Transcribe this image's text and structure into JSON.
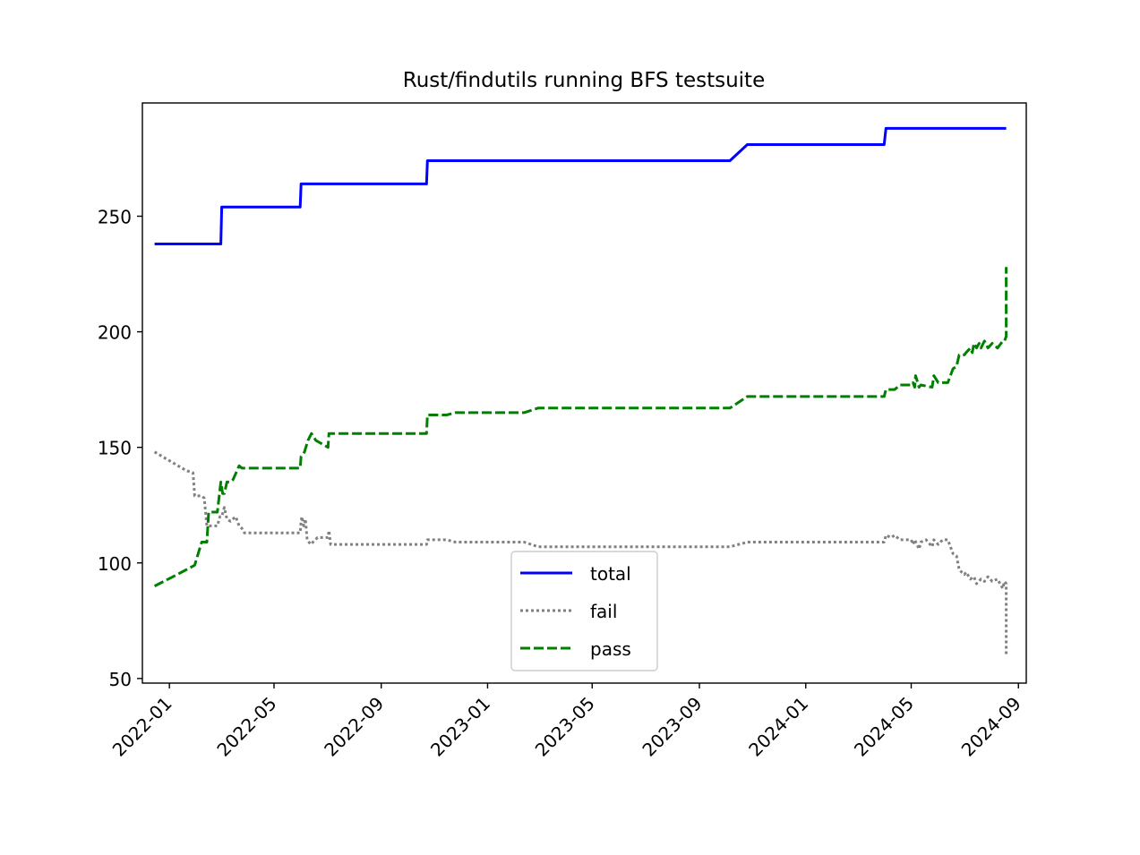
{
  "chart_data": {
    "type": "line",
    "title": "Rust/findutils running BFS testsuite",
    "xlabel": "",
    "ylabel": "",
    "x_ticks": [
      "2022-01-01",
      "2022-05-01",
      "2022-09-01",
      "2023-01-01",
      "2023-05-01",
      "2023-09-01",
      "2024-01-01",
      "2024-05-01",
      "2024-09-01"
    ],
    "x_tick_labels": [
      "2022-01",
      "2022-05",
      "2022-09",
      "2023-01",
      "2023-05",
      "2023-09",
      "2024-01",
      "2024-05",
      "2024-09"
    ],
    "y_ticks": [
      50,
      100,
      150,
      200,
      250
    ],
    "y_tick_labels": [
      "50",
      "100",
      "150",
      "200",
      "250"
    ],
    "xlim": [
      "2021-12-01",
      "2024-09-10"
    ],
    "ylim": [
      48,
      299
    ],
    "grid": false,
    "legend_position": "lower-center",
    "series": [
      {
        "name": "total",
        "color": "#0000ff",
        "style": "solid",
        "points": [
          [
            "2021-12-15",
            238
          ],
          [
            "2022-03-01",
            238
          ],
          [
            "2022-03-02",
            254
          ],
          [
            "2022-05-31",
            254
          ],
          [
            "2022-06-01",
            264
          ],
          [
            "2022-10-23",
            264
          ],
          [
            "2022-10-24",
            274
          ],
          [
            "2023-10-06",
            274
          ],
          [
            "2023-10-26",
            281
          ],
          [
            "2024-03-31",
            281
          ],
          [
            "2024-04-02",
            288
          ],
          [
            "2024-08-18",
            288
          ]
        ]
      },
      {
        "name": "fail",
        "color": "#808080",
        "style": "dotted",
        "points": [
          [
            "2021-12-15",
            148
          ],
          [
            "2022-01-20",
            140
          ],
          [
            "2022-01-28",
            139
          ],
          [
            "2022-01-30",
            129
          ],
          [
            "2022-02-07",
            129
          ],
          [
            "2022-02-10",
            128
          ],
          [
            "2022-02-13",
            116
          ],
          [
            "2022-02-25",
            116
          ],
          [
            "2022-02-28",
            120
          ],
          [
            "2022-03-02",
            120
          ],
          [
            "2022-03-05",
            124
          ],
          [
            "2022-03-08",
            119
          ],
          [
            "2022-03-12",
            118
          ],
          [
            "2022-03-18",
            120
          ],
          [
            "2022-03-22",
            116
          ],
          [
            "2022-03-25",
            115
          ],
          [
            "2022-03-28",
            113
          ],
          [
            "2022-05-31",
            113
          ],
          [
            "2022-06-01",
            118
          ],
          [
            "2022-06-02",
            120
          ],
          [
            "2022-06-04",
            116
          ],
          [
            "2022-06-06",
            119
          ],
          [
            "2022-06-08",
            110
          ],
          [
            "2022-06-12",
            108
          ],
          [
            "2022-06-20",
            111
          ],
          [
            "2022-07-02",
            111
          ],
          [
            "2022-07-03",
            114
          ],
          [
            "2022-07-05",
            108
          ],
          [
            "2022-10-23",
            108
          ],
          [
            "2022-10-24",
            110
          ],
          [
            "2022-11-15",
            110
          ],
          [
            "2022-11-25",
            109
          ],
          [
            "2023-02-12",
            109
          ],
          [
            "2023-02-28",
            107
          ],
          [
            "2023-10-06",
            107
          ],
          [
            "2023-10-26",
            109
          ],
          [
            "2024-03-31",
            109
          ],
          [
            "2024-04-02",
            112
          ],
          [
            "2024-04-08",
            111
          ],
          [
            "2024-04-12",
            112
          ],
          [
            "2024-04-18",
            110
          ],
          [
            "2024-05-01",
            110
          ],
          [
            "2024-05-03",
            108
          ],
          [
            "2024-05-05",
            110
          ],
          [
            "2024-05-10",
            106
          ],
          [
            "2024-05-12",
            109
          ],
          [
            "2024-05-18",
            110
          ],
          [
            "2024-05-25",
            107
          ],
          [
            "2024-05-27",
            110
          ],
          [
            "2024-06-01",
            108
          ],
          [
            "2024-06-06",
            110
          ],
          [
            "2024-06-12",
            110
          ],
          [
            "2024-06-18",
            104
          ],
          [
            "2024-06-22",
            103
          ],
          [
            "2024-06-25",
            97
          ],
          [
            "2024-07-01",
            95
          ],
          [
            "2024-07-03",
            96
          ],
          [
            "2024-07-08",
            93
          ],
          [
            "2024-07-12",
            94
          ],
          [
            "2024-07-15",
            91
          ],
          [
            "2024-07-20",
            93
          ],
          [
            "2024-07-24",
            92
          ],
          [
            "2024-07-28",
            94
          ],
          [
            "2024-08-02",
            92
          ],
          [
            "2024-08-08",
            93
          ],
          [
            "2024-08-14",
            89
          ],
          [
            "2024-08-16",
            92
          ],
          [
            "2024-08-18",
            91
          ],
          [
            "2024-08-18",
            60
          ]
        ]
      },
      {
        "name": "pass",
        "color": "#008000",
        "style": "dashed",
        "points": [
          [
            "2021-12-15",
            90
          ],
          [
            "2022-01-05",
            94
          ],
          [
            "2022-01-20",
            97
          ],
          [
            "2022-01-30",
            99
          ],
          [
            "2022-02-07",
            109
          ],
          [
            "2022-02-13",
            109
          ],
          [
            "2022-02-15",
            122
          ],
          [
            "2022-02-25",
            122
          ],
          [
            "2022-03-01",
            135
          ],
          [
            "2022-03-03",
            130
          ],
          [
            "2022-03-05",
            130
          ],
          [
            "2022-03-08",
            135
          ],
          [
            "2022-03-12",
            135
          ],
          [
            "2022-03-15",
            136
          ],
          [
            "2022-03-22",
            142
          ],
          [
            "2022-03-25",
            141
          ],
          [
            "2022-05-31",
            141
          ],
          [
            "2022-06-01",
            146
          ],
          [
            "2022-06-05",
            148
          ],
          [
            "2022-06-09",
            153
          ],
          [
            "2022-06-13",
            156
          ],
          [
            "2022-06-18",
            153
          ],
          [
            "2022-07-02",
            150
          ],
          [
            "2022-07-03",
            156
          ],
          [
            "2022-10-23",
            156
          ],
          [
            "2022-10-24",
            164
          ],
          [
            "2022-11-15",
            164
          ],
          [
            "2022-11-25",
            165
          ],
          [
            "2023-02-12",
            165
          ],
          [
            "2023-02-28",
            167
          ],
          [
            "2023-10-06",
            167
          ],
          [
            "2023-10-26",
            172
          ],
          [
            "2024-03-31",
            172
          ],
          [
            "2024-04-02",
            175
          ],
          [
            "2024-04-12",
            175
          ],
          [
            "2024-04-18",
            177
          ],
          [
            "2024-05-01",
            177
          ],
          [
            "2024-05-03",
            178
          ],
          [
            "2024-05-05",
            176
          ],
          [
            "2024-05-06",
            181
          ],
          [
            "2024-05-10",
            176
          ],
          [
            "2024-05-12",
            177
          ],
          [
            "2024-05-25",
            176
          ],
          [
            "2024-05-27",
            181
          ],
          [
            "2024-06-01",
            178
          ],
          [
            "2024-06-12",
            178
          ],
          [
            "2024-06-18",
            184
          ],
          [
            "2024-06-22",
            185
          ],
          [
            "2024-06-25",
            190
          ],
          [
            "2024-07-01",
            190
          ],
          [
            "2024-07-03",
            191
          ],
          [
            "2024-07-08",
            193
          ],
          [
            "2024-07-10",
            191
          ],
          [
            "2024-07-12",
            195
          ],
          [
            "2024-07-15",
            193
          ],
          [
            "2024-07-18",
            195
          ],
          [
            "2024-07-20",
            193
          ],
          [
            "2024-07-24",
            196
          ],
          [
            "2024-07-28",
            193
          ],
          [
            "2024-08-02",
            195
          ],
          [
            "2024-08-08",
            193
          ],
          [
            "2024-08-12",
            195
          ],
          [
            "2024-08-14",
            196
          ],
          [
            "2024-08-16",
            196
          ],
          [
            "2024-08-18",
            198
          ],
          [
            "2024-08-18",
            228
          ]
        ]
      }
    ]
  }
}
